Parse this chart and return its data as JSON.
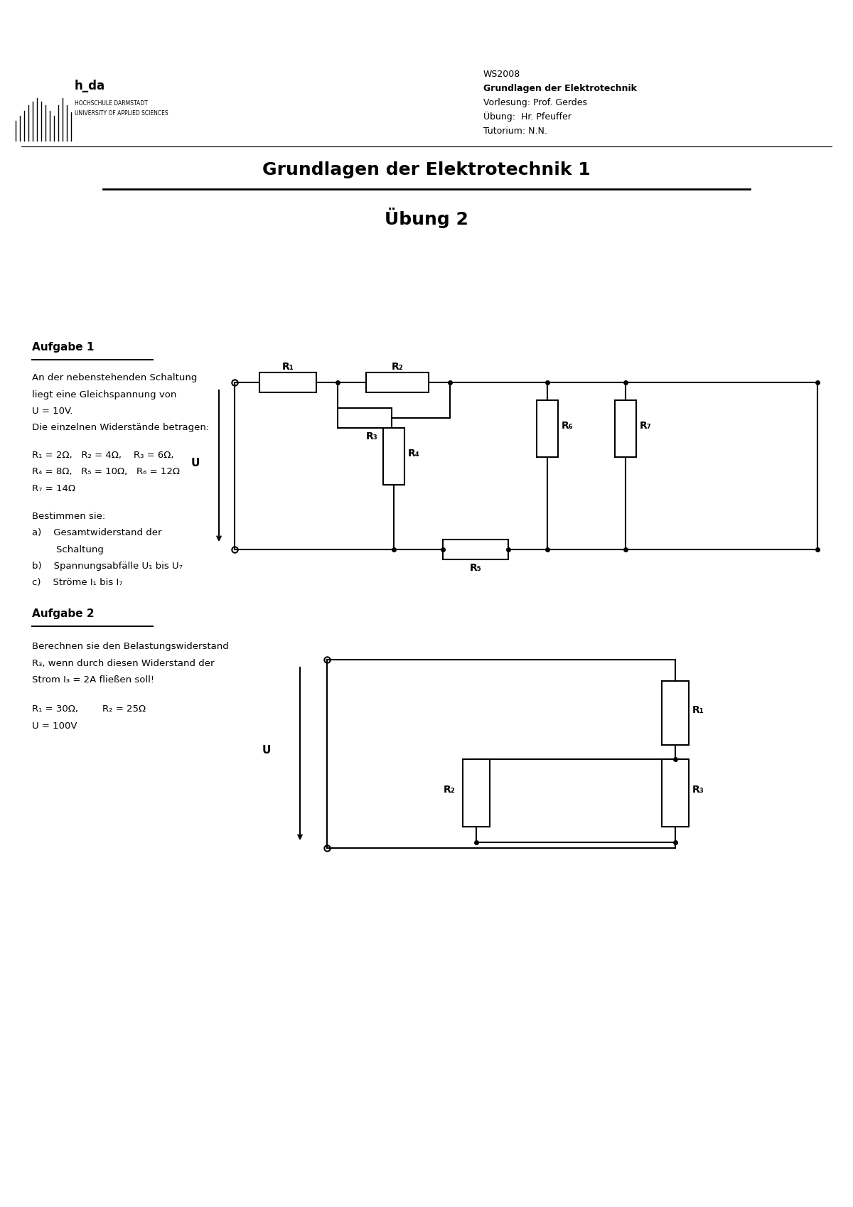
{
  "title1": "Grundlagen der Elektrotechnik 1",
  "title2": "Übung 2",
  "header_right_line1": "WS2008",
  "header_right_line2": "Grundlagen der Elektrotechnik",
  "header_right_line3": "Vorlesung: Prof. Gerdes",
  "header_right_line4": "Übung:  Hr. Pfeuffer",
  "header_right_line5": "Tutorium: N.N.",
  "hda_text": "h_da",
  "hda_sub1": "HOCHSCHULE DARMSTADT",
  "hda_sub2": "UNIVERSITY OF APPLIED SCIENCES",
  "aufgabe1_title": "Aufgabe 1",
  "aufgabe1_text1": "An der nebenstehenden Schaltung",
  "aufgabe1_text2": "liegt eine Gleichspannung von",
  "aufgabe1_text3": "U = 10V.",
  "aufgabe1_text4": "Die einzelnen Widerstände betragen:",
  "aufgabe1_text5": "R₁ = 2Ω,   R₂ = 4Ω,    R₃ = 6Ω,",
  "aufgabe1_text6": "R₄ = 8Ω,   R₅ = 10Ω,   R₆ = 12Ω",
  "aufgabe1_text7": "R₇ = 14Ω",
  "aufgabe1_text8": "Bestimmen sie:",
  "aufgabe1_a1": "a)    Gesamtwiderstand der",
  "aufgabe1_a2": "        Schaltung",
  "aufgabe1_b": "b)    Spannungsabfälle U₁ bis U₇",
  "aufgabe1_c": "c)    Ströme I₁ bis I₇",
  "aufgabe2_title": "Aufgabe 2",
  "aufgabe2_text1": "Berechnen sie den Belastungswiderstand",
  "aufgabe2_text2": "R₃, wenn durch diesen Widerstand der",
  "aufgabe2_text3": "Strom I₃ = 2A fließen soll!",
  "aufgabe2_text4": "R₁ = 30Ω,        R₂ = 25Ω",
  "aufgabe2_text5": "U = 100V",
  "bg_color": "#ffffff",
  "text_color": "#000000"
}
